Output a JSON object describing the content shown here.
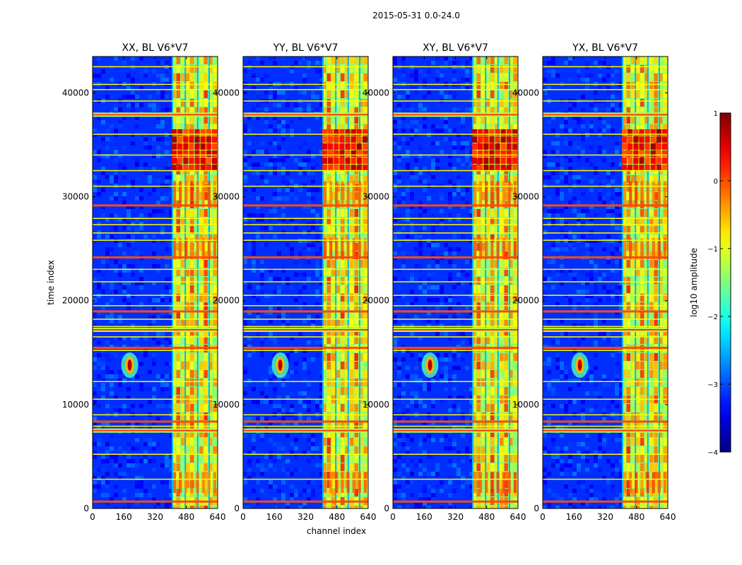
{
  "suptitle": "2015-05-31 0.0-24.0",
  "chart_data": [
    {
      "type": "heatmap",
      "title": "XX, BL V6*V7",
      "xlabel": "",
      "ylabel": "time index",
      "xlim": [
        0,
        640
      ],
      "ylim": [
        0,
        43500
      ],
      "xticks": [
        0,
        160,
        320,
        480,
        640
      ],
      "yticks": [
        0,
        10000,
        20000,
        30000,
        40000
      ],
      "rfi_channel_range": [
        405,
        640
      ],
      "rfi_strong_time_range": [
        32500,
        36500
      ],
      "point_source": {
        "channel": 190,
        "time": 13800
      }
    },
    {
      "type": "heatmap",
      "title": "YY, BL V6*V7",
      "xlabel": "channel index",
      "ylabel": "",
      "xlim": [
        0,
        640
      ],
      "ylim": [
        0,
        43500
      ],
      "xticks": [
        0,
        160,
        320,
        480,
        640
      ],
      "yticks": [
        0,
        10000,
        20000,
        30000,
        40000
      ],
      "rfi_channel_range": [
        405,
        640
      ],
      "rfi_strong_time_range": [
        32500,
        36500
      ],
      "point_source": {
        "channel": 190,
        "time": 13800
      }
    },
    {
      "type": "heatmap",
      "title": "XY, BL V6*V7",
      "xlabel": "",
      "ylabel": "",
      "xlim": [
        0,
        640
      ],
      "ylim": [
        0,
        43500
      ],
      "xticks": [
        0,
        160,
        320,
        480,
        640
      ],
      "yticks": [
        0,
        10000,
        20000,
        30000,
        40000
      ],
      "rfi_channel_range": [
        405,
        640
      ],
      "rfi_strong_time_range": [
        32500,
        36500
      ],
      "point_source": {
        "channel": 190,
        "time": 13800
      }
    },
    {
      "type": "heatmap",
      "title": "YX, BL V6*V7",
      "xlabel": "",
      "ylabel": "",
      "xlim": [
        0,
        640
      ],
      "ylim": [
        0,
        43500
      ],
      "xticks": [
        0,
        160,
        320,
        480,
        640
      ],
      "yticks": [
        0,
        10000,
        20000,
        30000,
        40000
      ],
      "rfi_channel_range": [
        405,
        640
      ],
      "rfi_strong_time_range": [
        32500,
        36500
      ],
      "point_source": {
        "channel": 190,
        "time": 13800
      }
    }
  ],
  "horizontal_flag_lines": [
    700,
    2800,
    5200,
    7500,
    7900,
    8400,
    9000,
    10500,
    12200,
    15200,
    15500,
    16500,
    17200,
    17500,
    18200,
    19000,
    19500,
    20500,
    21800,
    23000,
    24200,
    25800,
    26500,
    27300,
    27900,
    29200,
    31000,
    32500,
    34000,
    36000,
    37900,
    39200,
    40300,
    40800,
    42500
  ],
  "colorbar": {
    "label": "log10 amplitude",
    "min": -4,
    "max": 1,
    "ticks": [
      1,
      0,
      -1,
      -2,
      -3,
      -4
    ],
    "tick_labels": [
      "1",
      "0",
      "−1",
      "−2",
      "−3",
      "−4"
    ],
    "colormap": "jet"
  }
}
